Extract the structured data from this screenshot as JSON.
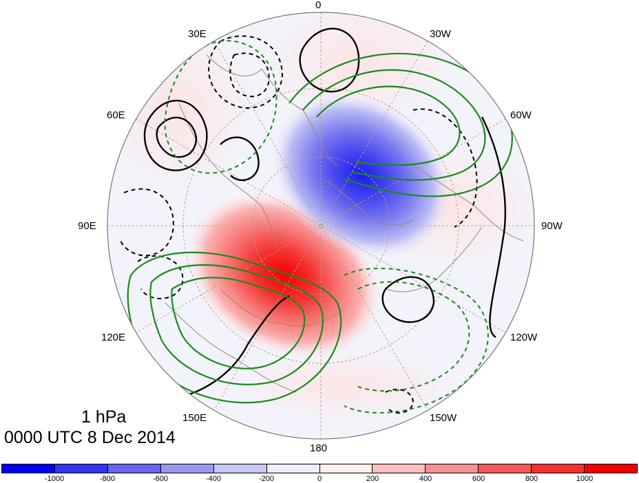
{
  "map": {
    "projection": "north polar stereographic",
    "longitude_labels": [
      "0",
      "30W",
      "60W",
      "90W",
      "120W",
      "150W",
      "180",
      "150E",
      "120E",
      "90E",
      "60E",
      "30E"
    ],
    "contour_colors": {
      "black": "#000000",
      "green": "#1a8a1a",
      "coastline": "#9a8470",
      "grid": "#b89e80"
    },
    "shading": {
      "positive": "#ff1a1a",
      "negative": "#1a1aee",
      "neutral": "#f4f4fc"
    }
  },
  "caption": {
    "level": "1 hPa",
    "time": "0000 UTC 8 Dec 2014"
  },
  "colorbar": {
    "colors": [
      "#0000f5",
      "#3333f0",
      "#6666ee",
      "#9999f0",
      "#c8c8f6",
      "#ececfa",
      "#fff0ee",
      "#fbc0c0",
      "#f79090",
      "#f55a5a",
      "#f53030",
      "#f50000"
    ],
    "tick_labels": [
      "-1000",
      "-800",
      "-600",
      "-400",
      "-200",
      "0",
      "200",
      "400",
      "600",
      "800",
      "1000"
    ]
  }
}
